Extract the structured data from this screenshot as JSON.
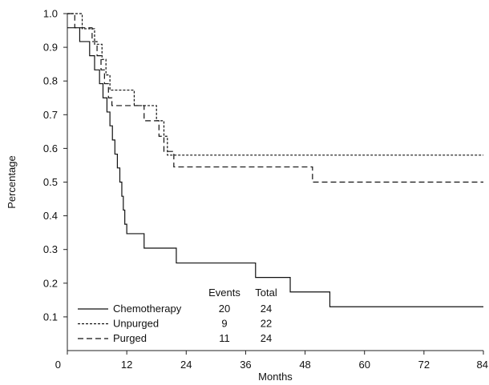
{
  "chart_data": {
    "type": "line",
    "step": true,
    "xlabel": "Months",
    "ylabel": "Percentage",
    "xlim": [
      0,
      84
    ],
    "ylim": [
      0,
      1.0
    ],
    "xticks": [
      0,
      12,
      24,
      36,
      48,
      60,
      72,
      84
    ],
    "yticks": [
      0.1,
      0.2,
      0.3,
      0.4,
      0.5,
      0.6,
      0.7,
      0.8,
      0.9,
      1.0
    ],
    "yticks_label": [
      "0.1",
      "0.2",
      "0.3",
      "0.4",
      "0.5",
      "0.6",
      "0.7",
      "0.8",
      "0.9",
      "1.0"
    ],
    "xticks_label": [
      "0",
      "12",
      "24",
      "36",
      "48",
      "60",
      "72",
      "84"
    ],
    "grid": false,
    "legend": {
      "placement": "bottom-left",
      "header_events": "Events",
      "header_total": "Total"
    },
    "series": [
      {
        "name": "Chemotherapy",
        "dash": "solid",
        "events": "20",
        "total": "24",
        "points": [
          [
            0,
            0.958
          ],
          [
            2.5,
            0.917
          ],
          [
            4.5,
            0.875
          ],
          [
            5.5,
            0.833
          ],
          [
            6.5,
            0.792
          ],
          [
            7.2,
            0.75
          ],
          [
            8.0,
            0.708
          ],
          [
            8.6,
            0.667
          ],
          [
            9.1,
            0.625
          ],
          [
            9.6,
            0.583
          ],
          [
            10.1,
            0.542
          ],
          [
            10.6,
            0.5
          ],
          [
            11.0,
            0.458
          ],
          [
            11.3,
            0.417
          ],
          [
            11.6,
            0.375
          ],
          [
            12.0,
            0.347
          ],
          [
            15.5,
            0.304
          ],
          [
            22.0,
            0.26
          ],
          [
            38.0,
            0.217
          ],
          [
            45.0,
            0.174
          ],
          [
            53.0,
            0.13
          ],
          [
            84.0,
            0.13
          ]
        ]
      },
      {
        "name": "Unpurged",
        "dash": "dotted",
        "events": "9",
        "total": "22",
        "points": [
          [
            0,
            1.0
          ],
          [
            3.0,
            0.955
          ],
          [
            5.5,
            0.909
          ],
          [
            7.0,
            0.864
          ],
          [
            7.8,
            0.818
          ],
          [
            8.6,
            0.773
          ],
          [
            13.5,
            0.727
          ],
          [
            18.0,
            0.682
          ],
          [
            19.5,
            0.636
          ],
          [
            20.2,
            0.58
          ],
          [
            84.0,
            0.58
          ]
        ]
      },
      {
        "name": "Purged",
        "dash": "dashed",
        "events": "11",
        "total": "24",
        "points": [
          [
            0,
            1.0
          ],
          [
            1.5,
            0.958
          ],
          [
            5.0,
            0.917
          ],
          [
            6.0,
            0.875
          ],
          [
            6.8,
            0.833
          ],
          [
            7.5,
            0.792
          ],
          [
            8.3,
            0.75
          ],
          [
            9.0,
            0.727
          ],
          [
            13.0,
            0.727
          ],
          [
            15.5,
            0.682
          ],
          [
            18.5,
            0.636
          ],
          [
            19.5,
            0.591
          ],
          [
            21.5,
            0.545
          ],
          [
            49.5,
            0.5
          ],
          [
            84.0,
            0.5
          ]
        ]
      }
    ]
  }
}
